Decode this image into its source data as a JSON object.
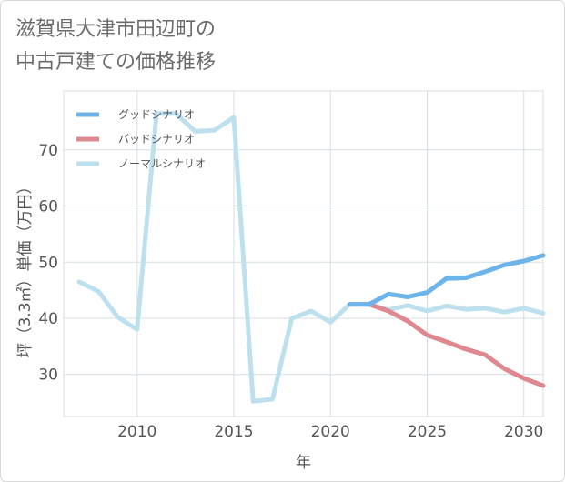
{
  "title_lines": [
    "滋賀県大津市田辺町の",
    "中古戸建ての価格推移"
  ],
  "chart_data": {
    "type": "line",
    "title": "滋賀県大津市田辺町の中古戸建ての価格推移",
    "xlabel": "年",
    "ylabel": "坪（3.3㎡）単価（万円）",
    "xlim": [
      2006.2,
      2031
    ],
    "ylim": [
      22.5,
      80.5
    ],
    "xticks": [
      2010,
      2015,
      2020,
      2025,
      2030
    ],
    "yticks": [
      30,
      40,
      50,
      60,
      70
    ],
    "grid": true,
    "legend_position": "top-left",
    "series": [
      {
        "name": "グッドシナリオ",
        "color": "#6cb4ea",
        "x": [
          2021,
          2022,
          2023,
          2024,
          2025,
          2026,
          2027,
          2028,
          2029,
          2030,
          2031
        ],
        "y": [
          42.5,
          42.5,
          44.3,
          43.8,
          44.6,
          47.1,
          47.2,
          48.3,
          49.5,
          50.2,
          51.2
        ]
      },
      {
        "name": "バッドシナリオ",
        "color": "#e08890",
        "x": [
          2021,
          2022,
          2023,
          2024,
          2025,
          2026,
          2027,
          2028,
          2029,
          2030,
          2031
        ],
        "y": [
          42.5,
          42.5,
          41.3,
          39.5,
          37.0,
          35.8,
          34.5,
          33.5,
          31.0,
          29.3,
          28.0
        ]
      },
      {
        "name": "ノーマルシナリオ",
        "color": "#bde0ee",
        "x": [
          2007,
          2008,
          2009,
          2010,
          2011,
          2012,
          2013,
          2014,
          2015,
          2016,
          2017,
          2018,
          2019,
          2020,
          2021,
          2022,
          2023,
          2024,
          2025,
          2026,
          2027,
          2028,
          2029,
          2030,
          2031
        ],
        "y": [
          46.5,
          44.8,
          40.2,
          38.0,
          76.5,
          76.5,
          73.3,
          73.5,
          75.8,
          25.2,
          25.6,
          40.0,
          41.3,
          39.3,
          42.5,
          42.5,
          41.5,
          42.3,
          41.3,
          42.2,
          41.6,
          41.8,
          41.1,
          41.8,
          40.9
        ]
      }
    ]
  }
}
